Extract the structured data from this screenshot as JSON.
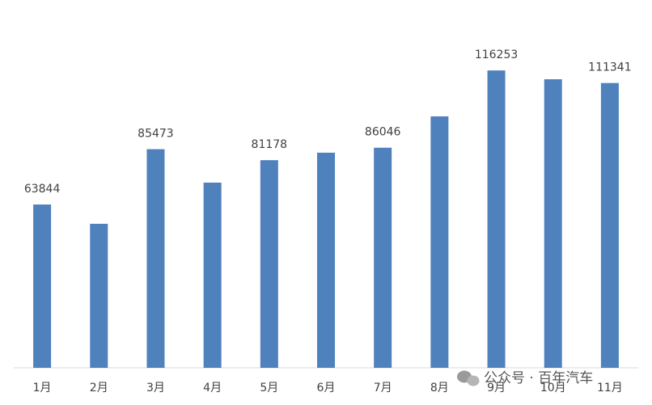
{
  "chart_data": {
    "type": "bar",
    "categories": [
      "1月",
      "2月",
      "3月",
      "4月",
      "5月",
      "6月",
      "7月",
      "8月",
      "9月",
      "10月",
      "11月"
    ],
    "values": [
      63844,
      56300,
      85473,
      72400,
      81178,
      84100,
      86046,
      98300,
      116253,
      112800,
      111341
    ],
    "show_label": [
      true,
      false,
      true,
      false,
      true,
      false,
      true,
      false,
      true,
      false,
      true
    ],
    "color": "#4f81bd",
    "ylim": [
      0,
      140000
    ],
    "grid": false,
    "watermark": "公众号 · 百年汽车"
  }
}
